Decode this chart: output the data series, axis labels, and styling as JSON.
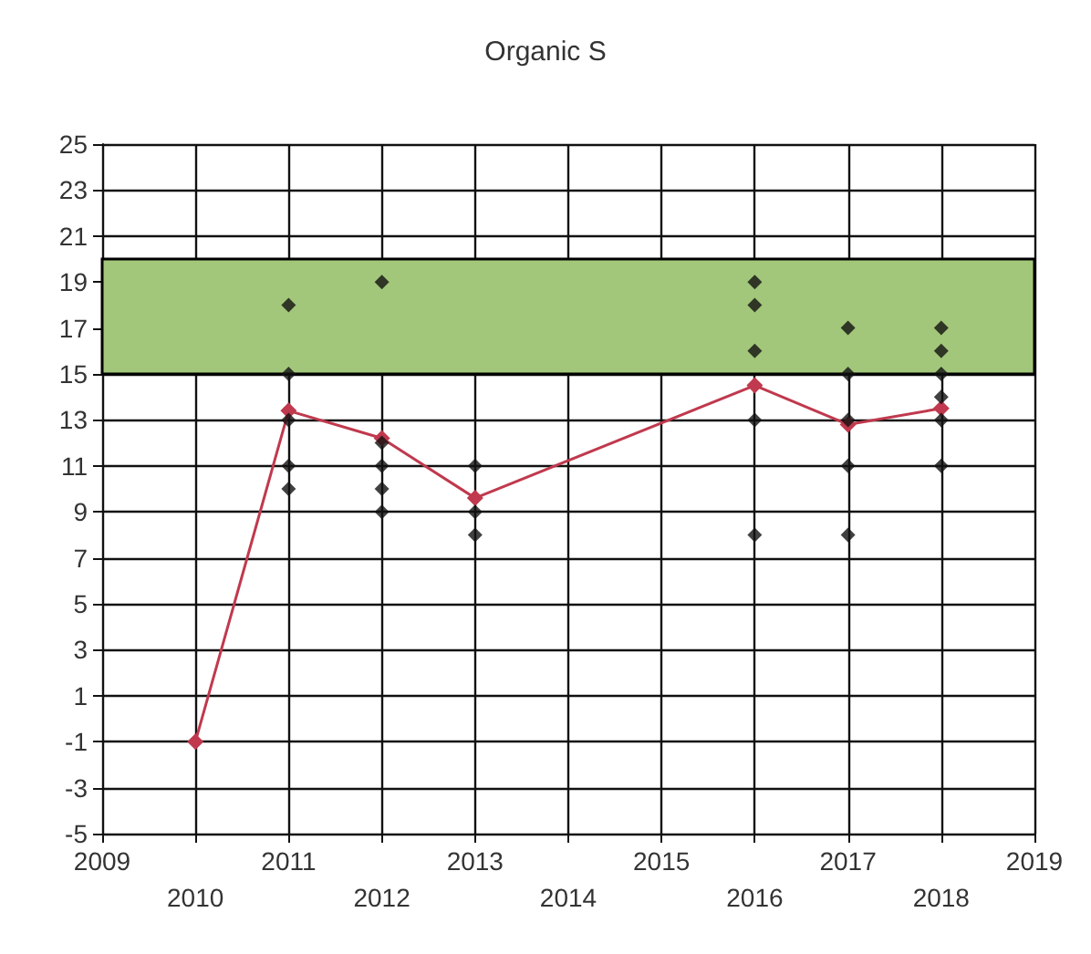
{
  "chart_data": {
    "type": "scatter",
    "title": "Organic S",
    "series": [
      {
        "color": "#111111",
        "x": [
          2011,
          2011,
          2011,
          2011,
          2011,
          2012,
          2012,
          2012,
          2012,
          2012,
          2013,
          2013,
          2013,
          2016,
          2016,
          2016,
          2016,
          2016,
          2017,
          2017,
          2017,
          2017,
          2017,
          2018,
          2018,
          2018,
          2018,
          2018,
          2018
        ],
        "values": [
          18,
          15,
          13,
          11,
          10,
          19,
          12,
          11,
          10,
          9,
          11,
          9,
          8,
          19,
          18,
          16,
          13,
          8,
          17,
          15,
          13,
          11,
          8,
          17,
          16,
          15,
          14,
          13,
          11
        ]
      },
      {
        "type": "line",
        "color": "#c0394e",
        "x": [
          2010,
          2011,
          2012,
          2013,
          2016,
          2017,
          2018
        ],
        "values": [
          -1,
          13.4,
          12.2,
          9.6,
          14.5,
          12.8,
          13.5
        ]
      }
    ],
    "xlim": [
      2009,
      2019
    ],
    "xticks": [
      2009,
      {
        "value": 2010,
        "label": null
      },
      2011,
      {
        "value": 2012,
        "label": null
      },
      2013,
      {
        "value": 2014,
        "label": null
      },
      2015,
      {
        "value": 2016,
        "label": null
      },
      2017,
      {
        "value": 2018,
        "label": null
      },
      2019
    ],
    "x2lim": [
      2009,
      2019
    ],
    "x2ticks": [
      2010,
      2012,
      2014,
      2016,
      2018
    ],
    "ylim": [
      -5,
      25
    ],
    "yticks": [
      -5,
      -3,
      -1,
      1,
      3,
      5,
      7,
      9,
      11,
      13,
      15,
      17,
      19,
      21,
      23,
      25
    ],
    "bands": [
      {
        "axis": "y",
        "from": 15,
        "to": 20,
        "color": "#a3c77a"
      }
    ],
    "grid": true,
    "marker": "diamond",
    "line_style": "solid"
  }
}
